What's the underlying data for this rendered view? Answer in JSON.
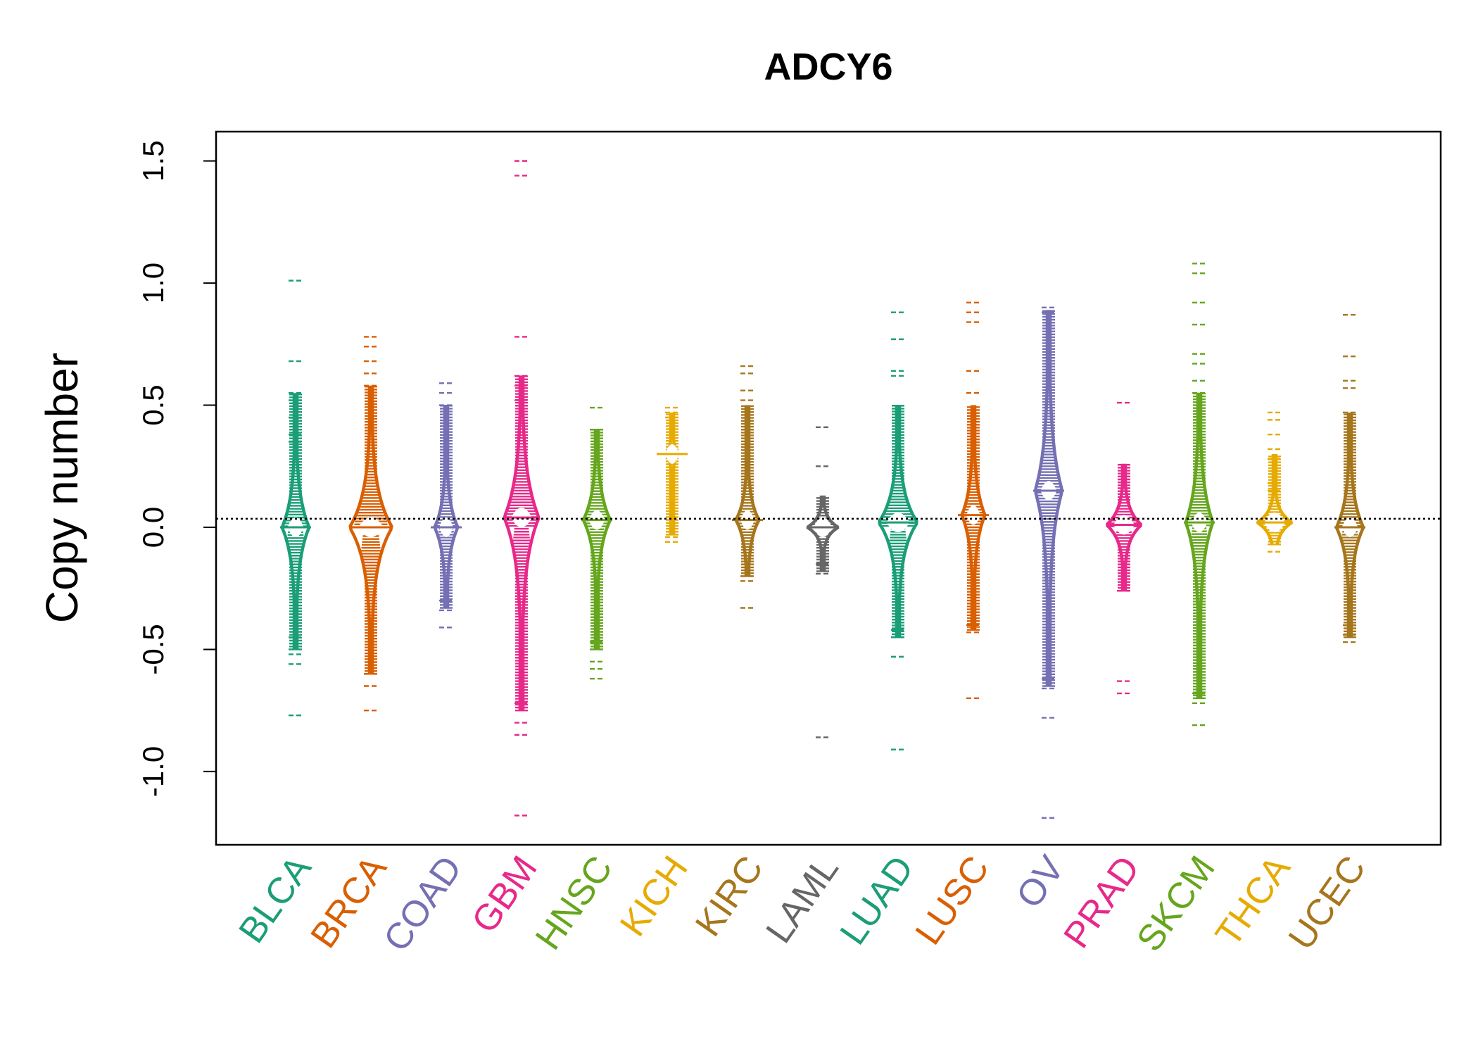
{
  "chart_data": {
    "type": "beanplot",
    "title": "ADCY6",
    "xlabel": "",
    "ylabel": "Copy number",
    "ylim": [
      -1.3,
      1.62
    ],
    "yticks": [
      -1.0,
      -0.5,
      0.0,
      0.5,
      1.0,
      1.5
    ],
    "ytick_labels": [
      "-1.0",
      "-0.5",
      "0.0",
      "0.5",
      "1.0",
      "1.5"
    ],
    "reference_line": 0.035,
    "grid": false,
    "legend": "none",
    "categories": [
      "BLCA",
      "BRCA",
      "COAD",
      "GBM",
      "HNSC",
      "KICH",
      "KIRC",
      "LAML",
      "LUAD",
      "LUSC",
      "OV",
      "PRAD",
      "SKCM",
      "THCA",
      "UCEC"
    ],
    "colors": [
      "#1b9e77",
      "#d95f02",
      "#7570b3",
      "#e7298a",
      "#66a61e",
      "#e6ab02",
      "#a6761d",
      "#666666",
      "#1b9e77",
      "#d95f02",
      "#7570b3",
      "#e7298a",
      "#66a61e",
      "#e6ab02",
      "#a6761d"
    ],
    "series": [
      {
        "category": "BLCA",
        "min": -0.77,
        "max": 1.01,
        "q_low": -0.5,
        "q_high": 0.55,
        "center": 0.0,
        "width": 0.35,
        "outliers": [
          1.01,
          0.68,
          0.55,
          0.52,
          0.45,
          0.38,
          0.35,
          -0.45,
          -0.5,
          -0.52,
          -0.56,
          -0.77
        ]
      },
      {
        "category": "BRCA",
        "min": -0.75,
        "max": 0.78,
        "q_low": -0.6,
        "q_high": 0.58,
        "center": 0.0,
        "width": 0.55,
        "outliers": [
          0.78,
          0.74,
          0.68,
          0.63,
          0.58,
          -0.6,
          -0.65,
          -0.75
        ]
      },
      {
        "category": "COAD",
        "min": -0.41,
        "max": 0.59,
        "q_low": -0.33,
        "q_high": 0.5,
        "center": 0.0,
        "width": 0.3,
        "outliers": [
          0.59,
          0.55,
          0.5,
          -0.3,
          -0.34,
          -0.41
        ]
      },
      {
        "category": "GBM",
        "min": -1.18,
        "max": 1.5,
        "q_low": -0.75,
        "q_high": 0.62,
        "center": 0.04,
        "width": 0.45,
        "outliers": [
          1.5,
          1.44,
          0.78,
          0.62,
          0.58,
          0.52,
          -0.72,
          -0.8,
          -0.85,
          -1.18
        ]
      },
      {
        "category": "HNSC",
        "min": -0.62,
        "max": 0.49,
        "q_low": -0.5,
        "q_high": 0.4,
        "center": 0.03,
        "width": 0.35,
        "outliers": [
          0.49,
          0.4,
          -0.47,
          -0.5,
          -0.55,
          -0.58,
          -0.62
        ]
      },
      {
        "category": "KICH",
        "min": -0.06,
        "max": 0.49,
        "q_low": -0.03,
        "q_high": 0.47,
        "center": 0.3,
        "width": 0.1,
        "outliers": [
          0.49,
          0.47,
          0.45,
          -0.04,
          -0.06
        ]
      },
      {
        "category": "KIRC",
        "min": -0.33,
        "max": 0.66,
        "q_low": -0.2,
        "q_high": 0.5,
        "center": 0.03,
        "width": 0.3,
        "outliers": [
          0.66,
          0.63,
          0.56,
          0.52,
          -0.2,
          -0.22,
          -0.33
        ]
      },
      {
        "category": "LAML",
        "min": -0.86,
        "max": 0.41,
        "q_low": -0.18,
        "q_high": 0.13,
        "center": 0.0,
        "width": 0.4,
        "outliers": [
          0.41,
          0.25,
          -0.15,
          -0.19,
          -0.86
        ]
      },
      {
        "category": "LUAD",
        "min": -0.91,
        "max": 0.88,
        "q_low": -0.45,
        "q_high": 0.5,
        "center": 0.02,
        "width": 0.5,
        "outliers": [
          0.88,
          0.77,
          0.64,
          0.62,
          -0.42,
          -0.45,
          -0.53,
          -0.91
        ]
      },
      {
        "category": "LUSC",
        "min": -0.7,
        "max": 0.92,
        "q_low": -0.42,
        "q_high": 0.5,
        "center": 0.05,
        "width": 0.3,
        "outliers": [
          0.92,
          0.88,
          0.84,
          0.64,
          0.55,
          -0.4,
          -0.43,
          -0.7
        ]
      },
      {
        "category": "OV",
        "min": -1.19,
        "max": 0.9,
        "q_low": -0.65,
        "q_high": 0.89,
        "center": 0.15,
        "width": 0.35,
        "outliers": [
          0.9,
          0.88,
          -0.62,
          -0.66,
          -0.78,
          -1.19
        ]
      },
      {
        "category": "PRAD",
        "min": -0.68,
        "max": 0.51,
        "q_low": -0.26,
        "q_high": 0.26,
        "center": 0.01,
        "width": 0.45,
        "outliers": [
          0.51,
          -0.26,
          -0.63,
          -0.68
        ]
      },
      {
        "category": "SKCM",
        "min": -0.81,
        "max": 1.08,
        "q_low": -0.7,
        "q_high": 0.55,
        "center": 0.02,
        "width": 0.35,
        "outliers": [
          1.08,
          1.04,
          0.92,
          0.83,
          0.71,
          0.67,
          0.6,
          0.55,
          -0.68,
          -0.72,
          -0.81
        ]
      },
      {
        "category": "THCA",
        "min": -0.1,
        "max": 0.47,
        "q_low": -0.07,
        "q_high": 0.3,
        "center": 0.02,
        "width": 0.45,
        "outliers": [
          0.47,
          0.44,
          0.38,
          0.32,
          0.28,
          0.18,
          0.15,
          -0.07,
          -0.1
        ]
      },
      {
        "category": "UCEC",
        "min": -0.47,
        "max": 0.87,
        "q_low": -0.45,
        "q_high": 0.47,
        "center": 0.0,
        "width": 0.35,
        "outliers": [
          0.87,
          0.7,
          0.6,
          0.57,
          0.47,
          -0.4,
          -0.44,
          -0.47
        ]
      }
    ]
  }
}
